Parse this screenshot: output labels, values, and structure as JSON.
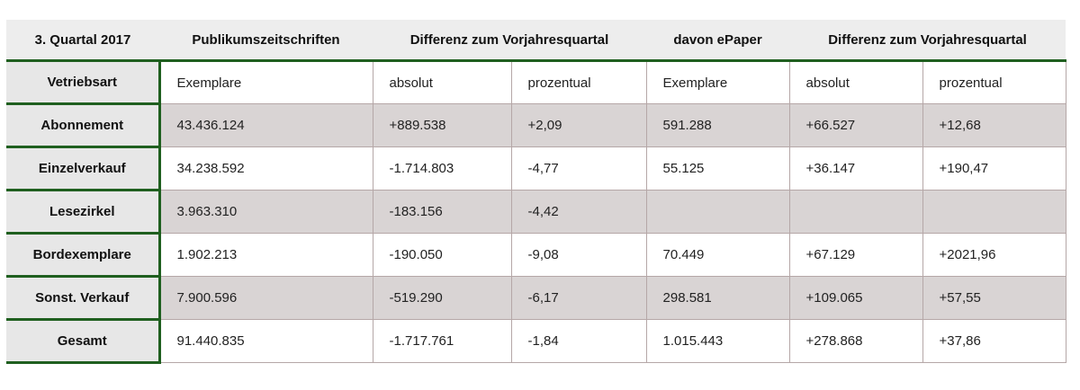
{
  "chart_data": {
    "type": "table",
    "columns": [
      "3. Quartal 2017",
      "Publikumszeitschriften",
      "Differenz zum Vorjahresquartal",
      "",
      "davon ePaper",
      "Differenz zum Vorjahresquartal",
      ""
    ],
    "rows": [
      {
        "label": "Vetriebsart",
        "cells": [
          "Exemplare",
          "absolut",
          "prozentual",
          "Exemplare",
          "absolut",
          "prozentual"
        ]
      },
      {
        "label": "Abonnement",
        "cells": [
          "43.436.124",
          "+889.538",
          "+2,09",
          "591.288",
          "+66.527",
          "+12,68"
        ]
      },
      {
        "label": "Einzelverkauf",
        "cells": [
          "34.238.592",
          "-1.714.803",
          "-4,77",
          "55.125",
          "+36.147",
          "+190,47"
        ]
      },
      {
        "label": "Lesezirkel",
        "cells": [
          "3.963.310",
          "-183.156",
          "-4,42",
          "",
          "",
          ""
        ]
      },
      {
        "label": "Bordexemplare",
        "cells": [
          "1.902.213",
          "-190.050",
          "-9,08",
          "70.449",
          "+67.129",
          "+2021,96"
        ]
      },
      {
        "label": "Sonst. Verkauf",
        "cells": [
          "7.900.596",
          "-519.290",
          "-6,17",
          "298.581",
          "+109.065",
          "+57,55"
        ]
      },
      {
        "label": "Gesamt",
        "cells": [
          "91.440.835",
          "-1.717.761",
          "-1,84",
          "1.015.443",
          "+278.868",
          "+37,86"
        ]
      }
    ]
  },
  "colors": {
    "header_background": "#ededed",
    "label_background": "#e7e7e7",
    "shaded_row": "#d9d4d4",
    "accent_green": "#1f5f1f",
    "cell_border": "#b5a7a7"
  }
}
